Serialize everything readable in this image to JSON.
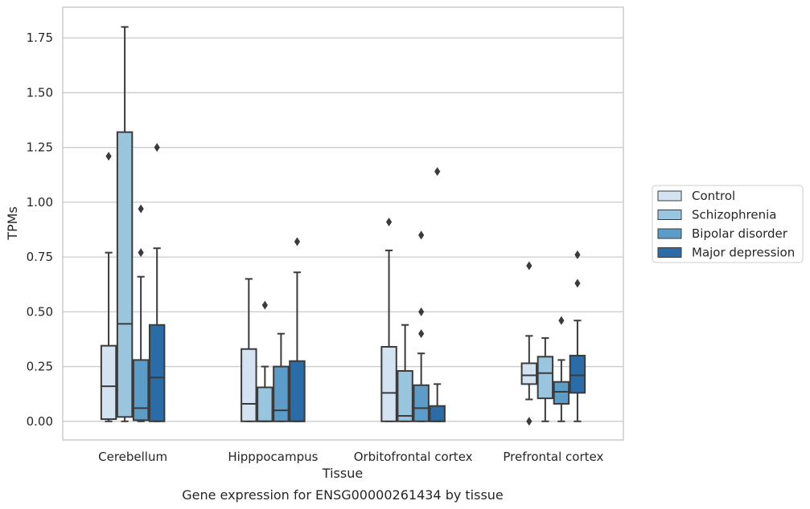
{
  "chart_data": {
    "type": "box",
    "xlabel": "Tissue",
    "ylabel": "TPMs",
    "caption": "Gene expression for ENSG00000261434 by tissue",
    "ylim": [
      -0.085,
      1.89
    ],
    "yticks": [
      "0.00",
      "0.25",
      "0.50",
      "0.75",
      "1.00",
      "1.25",
      "1.50",
      "1.75"
    ],
    "grid": "horizontal",
    "legend_position": "right",
    "categories": [
      "Cerebellum",
      "Hipppocampus",
      "Orbitofrontal cortex",
      "Prefrontal cortex"
    ],
    "series": [
      {
        "name": "Control",
        "color": "#d3e3f2",
        "boxes": [
          {
            "whislo": 0.0,
            "q1": 0.01,
            "med": 0.16,
            "q3": 0.345,
            "whishi": 0.77,
            "fliers": [
              1.21
            ]
          },
          {
            "whislo": 0.0,
            "q1": 0.0,
            "med": 0.08,
            "q3": 0.33,
            "whishi": 0.65,
            "fliers": []
          },
          {
            "whislo": 0.0,
            "q1": 0.0,
            "med": 0.13,
            "q3": 0.34,
            "whishi": 0.78,
            "fliers": [
              0.91
            ]
          },
          {
            "whislo": 0.1,
            "q1": 0.17,
            "med": 0.21,
            "q3": 0.265,
            "whishi": 0.39,
            "fliers": [
              0.71,
              0.0
            ]
          }
        ]
      },
      {
        "name": "Schizophrenia",
        "color": "#9ac5df",
        "boxes": [
          {
            "whislo": 0.0,
            "q1": 0.02,
            "med": 0.445,
            "q3": 1.32,
            "whishi": 1.8,
            "fliers": []
          },
          {
            "whislo": 0.0,
            "q1": 0.0,
            "med": 0.0,
            "q3": 0.155,
            "whishi": 0.25,
            "fliers": [
              0.53
            ]
          },
          {
            "whislo": 0.0,
            "q1": 0.0,
            "med": 0.025,
            "q3": 0.23,
            "whishi": 0.44,
            "fliers": []
          },
          {
            "whislo": 0.0,
            "q1": 0.105,
            "med": 0.22,
            "q3": 0.295,
            "whishi": 0.38,
            "fliers": []
          }
        ]
      },
      {
        "name": "Bipolar disorder",
        "color": "#5b9cc8",
        "boxes": [
          {
            "whislo": 0.0,
            "q1": 0.005,
            "med": 0.06,
            "q3": 0.28,
            "whishi": 0.66,
            "fliers": [
              0.97,
              0.77
            ]
          },
          {
            "whislo": 0.0,
            "q1": 0.0,
            "med": 0.05,
            "q3": 0.25,
            "whishi": 0.4,
            "fliers": []
          },
          {
            "whislo": 0.0,
            "q1": 0.0,
            "med": 0.06,
            "q3": 0.165,
            "whishi": 0.31,
            "fliers": [
              0.85,
              0.5,
              0.4
            ]
          },
          {
            "whislo": 0.0,
            "q1": 0.08,
            "med": 0.135,
            "q3": 0.18,
            "whishi": 0.28,
            "fliers": [
              0.46
            ]
          }
        ]
      },
      {
        "name": "Major depression",
        "color": "#2a6ca8",
        "boxes": [
          {
            "whislo": 0.0,
            "q1": 0.0,
            "med": 0.2,
            "q3": 0.44,
            "whishi": 0.79,
            "fliers": [
              1.25
            ]
          },
          {
            "whislo": 0.0,
            "q1": 0.0,
            "med": 0.0,
            "q3": 0.275,
            "whishi": 0.68,
            "fliers": [
              0.82
            ]
          },
          {
            "whislo": 0.0,
            "q1": 0.0,
            "med": 0.0,
            "q3": 0.07,
            "whishi": 0.17,
            "fliers": [
              1.14
            ]
          },
          {
            "whislo": 0.0,
            "q1": 0.13,
            "med": 0.21,
            "q3": 0.3,
            "whishi": 0.46,
            "fliers": [
              0.76,
              0.63
            ]
          }
        ]
      }
    ]
  }
}
